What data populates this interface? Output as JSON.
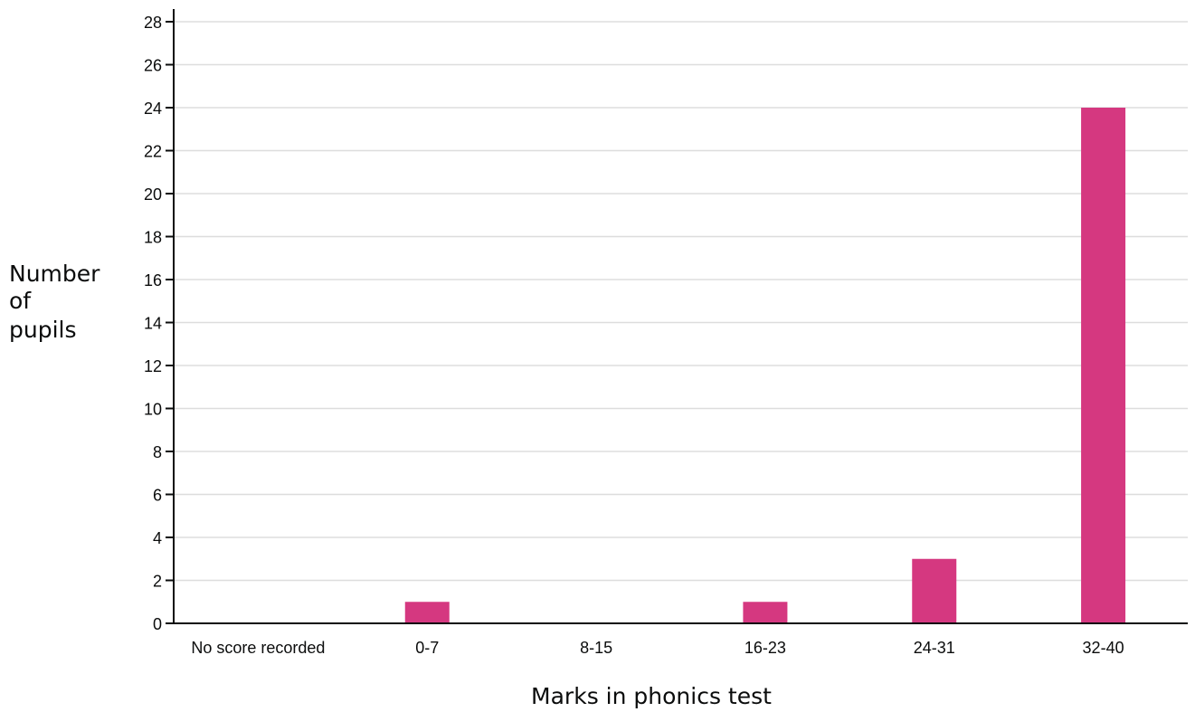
{
  "chart_data": {
    "type": "bar",
    "categories": [
      "No score recorded",
      "0-7",
      "8-15",
      "16-23",
      "24-31",
      "32-40"
    ],
    "values": [
      0,
      1,
      0,
      1,
      3,
      24
    ],
    "xlabel": "Marks in phonics test",
    "ylabel": [
      "Number",
      "of",
      "pupils"
    ],
    "ylim": [
      0,
      28
    ],
    "yticks": [
      0,
      2,
      4,
      6,
      8,
      10,
      12,
      14,
      16,
      18,
      20,
      22,
      24,
      26,
      28
    ],
    "grid": true,
    "bar_color": "#d53880"
  }
}
